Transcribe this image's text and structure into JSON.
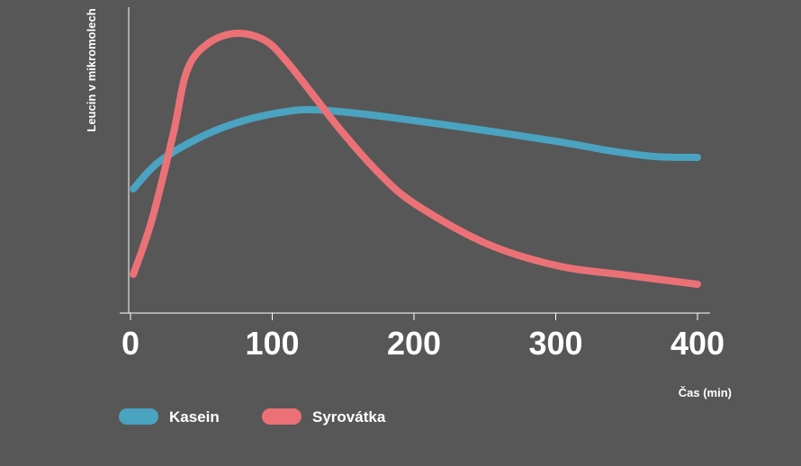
{
  "chart_data": {
    "type": "line",
    "title": "",
    "xlabel": "Čas (min)",
    "ylabel": "Leucin v mikromolech",
    "xlim": [
      0,
      400
    ],
    "xticks": [
      0,
      100,
      200,
      300,
      400
    ],
    "y_ticks_shown": false,
    "grid": false,
    "legend_position": "bottom-left",
    "colors": {
      "background": "#575757",
      "axis": "#ffffff"
    },
    "series": [
      {
        "name": "Kasein",
        "color": "#4aa3c0",
        "points": [
          [
            2,
            210
          ],
          [
            20,
            180
          ],
          [
            50,
            152
          ],
          [
            80,
            134
          ],
          [
            110,
            124
          ],
          [
            130,
            122
          ],
          [
            160,
            126
          ],
          [
            200,
            134
          ],
          [
            250,
            145
          ],
          [
            300,
            157
          ],
          [
            340,
            168
          ],
          [
            370,
            174
          ],
          [
            400,
            175
          ]
        ]
      },
      {
        "name": "Syrovátka",
        "color": "#ec7177",
        "points": [
          [
            2,
            305
          ],
          [
            15,
            245
          ],
          [
            30,
            150
          ],
          [
            40,
            78
          ],
          [
            55,
            48
          ],
          [
            75,
            37
          ],
          [
            95,
            45
          ],
          [
            110,
            68
          ],
          [
            130,
            108
          ],
          [
            150,
            148
          ],
          [
            175,
            192
          ],
          [
            200,
            226
          ],
          [
            250,
            270
          ],
          [
            300,
            295
          ],
          [
            350,
            306
          ],
          [
            400,
            316
          ]
        ]
      }
    ]
  }
}
